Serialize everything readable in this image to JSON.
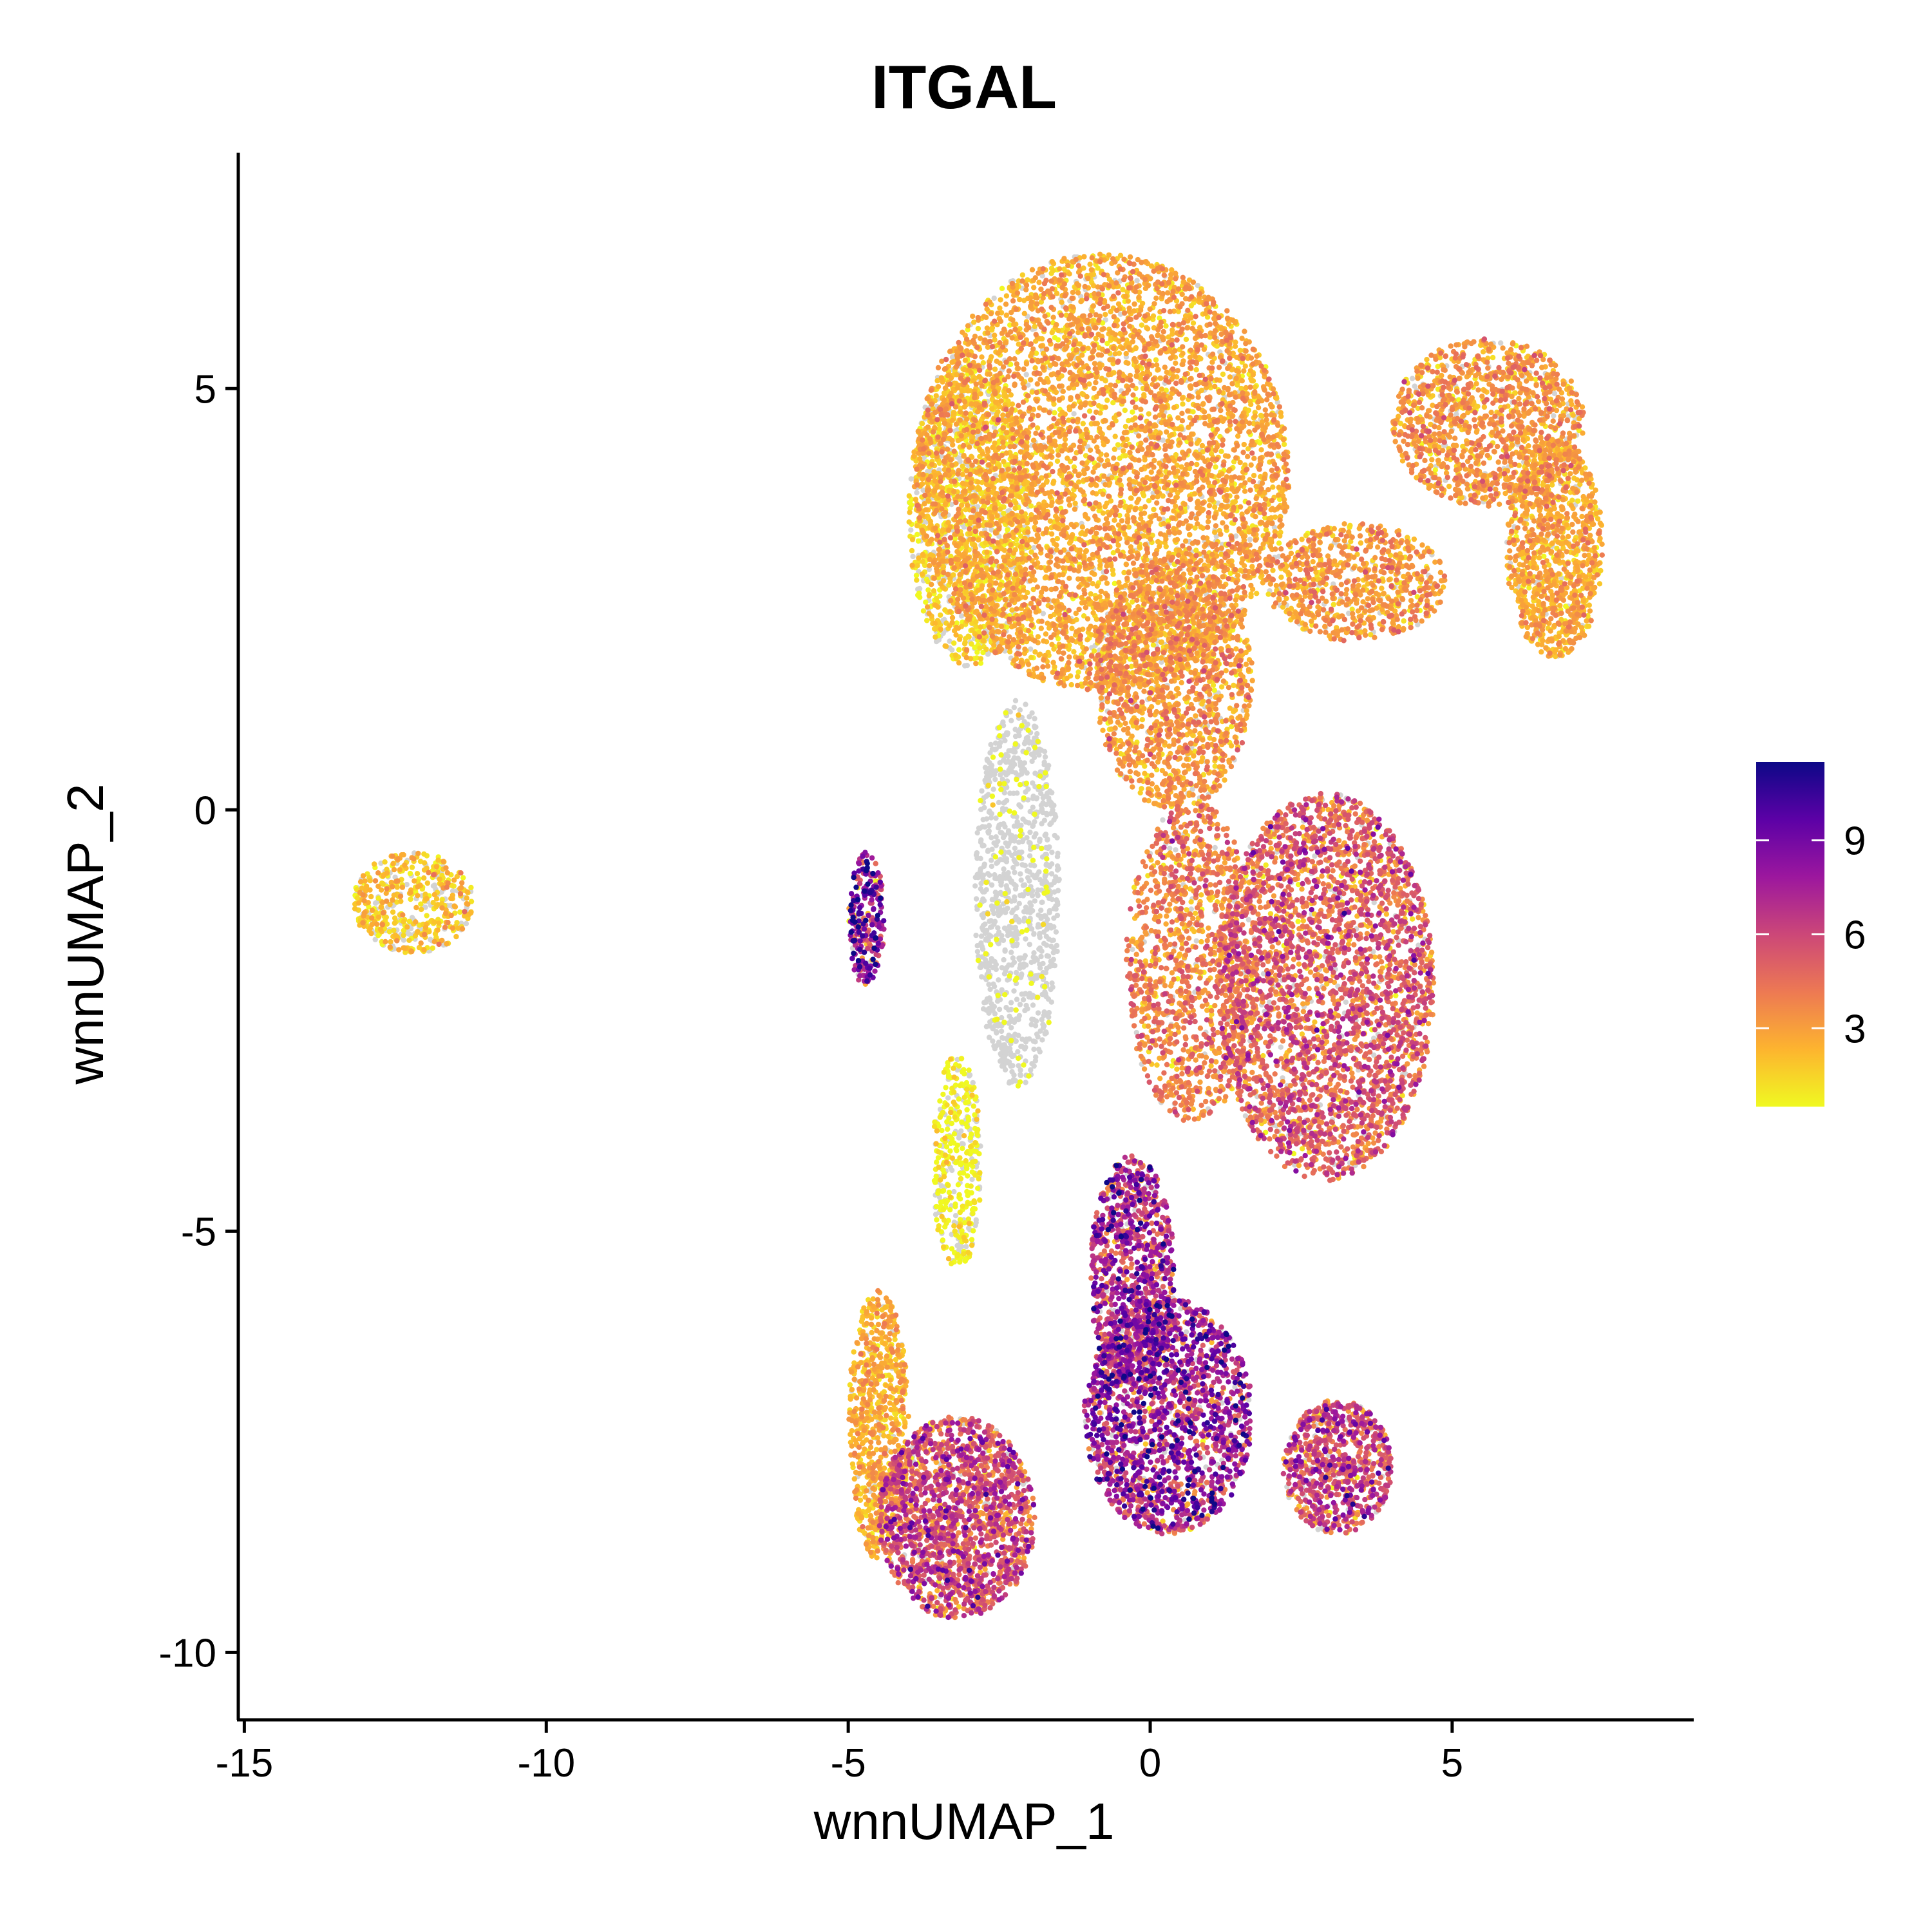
{
  "chart_data": {
    "type": "scatter",
    "title": "ITGAL",
    "xlabel": "wnnUMAP_1",
    "ylabel": "wnnUMAP_2",
    "xlim": [
      -15.1,
      9.0
    ],
    "ylim": [
      -10.8,
      7.8
    ],
    "x_ticks": [
      -15,
      -10,
      -5,
      0,
      5
    ],
    "y_ticks": [
      -10,
      -5,
      0,
      5
    ],
    "x_tick_labels": [
      "-15",
      "-10",
      "-5",
      "0",
      "5"
    ],
    "y_tick_labels": [
      "-10",
      "-5",
      "0",
      "5"
    ],
    "grid": false,
    "color_scale": {
      "name": "plasma (reversed)",
      "min": 0.5,
      "max": 11.5,
      "breaks": [
        3,
        6,
        9
      ],
      "break_labels": [
        "3",
        "6",
        "9"
      ],
      "colors": [
        "#f0f921",
        "#fdb42f",
        "#ed7953",
        "#cc4778",
        "#9c179e",
        "#5c01a6",
        "#0d0887"
      ],
      "zero_color": "#d3d3d3"
    },
    "legend_placement": "right",
    "clusters": [
      {
        "name": "top-center lobe",
        "cx": -0.8,
        "cy": 4.0,
        "rx": 3.1,
        "ry": 2.6,
        "level": 2.6,
        "weight": 0.22
      },
      {
        "name": "top-center left edge",
        "cx": -3.0,
        "cy": 3.5,
        "rx": 1.0,
        "ry": 1.8,
        "level": 1.4,
        "weight": 0.05
      },
      {
        "name": "center column",
        "cx": 0.4,
        "cy": 1.5,
        "rx": 1.3,
        "ry": 1.5,
        "level": 3.0,
        "weight": 0.06
      },
      {
        "name": "top-right lobe",
        "cx": 5.6,
        "cy": 4.6,
        "rx": 1.6,
        "ry": 1.0,
        "level": 3.0,
        "weight": 0.05
      },
      {
        "name": "top-right arm",
        "cx": 6.7,
        "cy": 3.1,
        "rx": 0.8,
        "ry": 1.3,
        "level": 2.5,
        "weight": 0.04
      },
      {
        "name": "right bridge",
        "cx": 3.4,
        "cy": 2.7,
        "rx": 1.5,
        "ry": 0.7,
        "level": 3.0,
        "weight": 0.03
      },
      {
        "name": "middle-right mass",
        "cx": 2.9,
        "cy": -2.1,
        "rx": 1.8,
        "ry": 2.3,
        "level": 4.6,
        "weight": 0.13
      },
      {
        "name": "middle stalk",
        "cx": 0.7,
        "cy": -1.8,
        "rx": 1.1,
        "ry": 1.9,
        "level": 3.6,
        "weight": 0.05
      },
      {
        "name": "lower stem",
        "cx": -0.3,
        "cy": -5.5,
        "rx": 0.7,
        "ry": 1.4,
        "level": 6.5,
        "weight": 0.04
      },
      {
        "name": "lower central mass",
        "cx": 0.3,
        "cy": -7.2,
        "rx": 1.4,
        "ry": 1.4,
        "level": 7.0,
        "weight": 0.07
      },
      {
        "name": "lower-left mass",
        "cx": -3.2,
        "cy": -8.4,
        "rx": 1.3,
        "ry": 1.2,
        "level": 5.2,
        "weight": 0.07
      },
      {
        "name": "lower-left outer edge",
        "cx": -4.5,
        "cy": -7.3,
        "rx": 0.5,
        "ry": 1.6,
        "level": 2.4,
        "weight": 0.03
      },
      {
        "name": "lower-right blob",
        "cx": 3.1,
        "cy": -7.8,
        "rx": 0.9,
        "ry": 0.8,
        "level": 5.5,
        "weight": 0.03
      },
      {
        "name": "left arc",
        "cx": -4.7,
        "cy": -1.3,
        "rx": 0.3,
        "ry": 0.8,
        "level": 7.5,
        "weight": 0.01
      },
      {
        "name": "gray column",
        "cx": -2.2,
        "cy": -1.0,
        "rx": 0.7,
        "ry": 2.3,
        "level": 0.0,
        "weight": 0.04
      },
      {
        "name": "gray lower stalk",
        "cx": -3.2,
        "cy": -4.2,
        "rx": 0.4,
        "ry": 1.3,
        "level": 0.3,
        "weight": 0.015
      },
      {
        "name": "far-left island",
        "cx": -12.2,
        "cy": -1.1,
        "rx": 1.0,
        "ry": 0.6,
        "level": 1.8,
        "weight": 0.02
      }
    ]
  }
}
